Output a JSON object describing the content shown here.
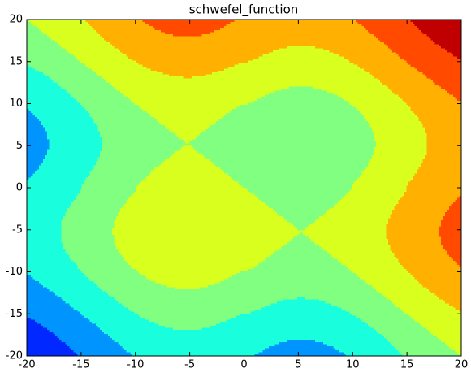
{
  "chart_data": {
    "type": "contour",
    "title": "schwefel_function",
    "xlim": [
      -20,
      20
    ],
    "ylim": [
      -20,
      20
    ],
    "xticks": [
      -20,
      -15,
      -10,
      -5,
      0,
      5,
      10,
      15,
      20
    ],
    "yticks": [
      -20,
      -15,
      -10,
      -5,
      0,
      5,
      10,
      15,
      20
    ],
    "levels": [
      -40,
      -30,
      -20,
      -10,
      0,
      10,
      20,
      30,
      40
    ],
    "colors": [
      "#0028ff",
      "#0094ff",
      "#19ffde",
      "#80ff80",
      "#d9ff1f",
      "#ffb000",
      "#ff4a00",
      "#c00000"
    ]
  }
}
